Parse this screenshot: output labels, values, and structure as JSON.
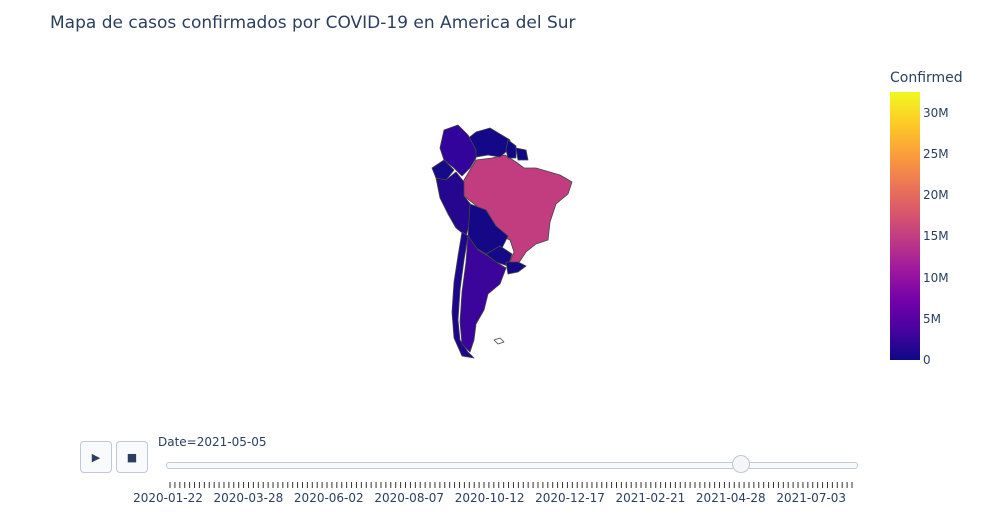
{
  "title": "Mapa de casos confirmados por COVID-19 en America del Sur",
  "chart_data": {
    "type": "choropleth",
    "title": "Mapa de casos confirmados por COVID-19 en America del Sur",
    "current_date": "2021-05-05",
    "colorscale": "plasma",
    "colorbar": {
      "title": "Confirmed",
      "range": [
        0,
        32500000
      ],
      "ticks": [
        "0",
        "5M",
        "10M",
        "15M",
        "20M",
        "25M",
        "30M"
      ]
    },
    "countries": [
      {
        "name": "Brazil",
        "color": "#c23d80"
      },
      {
        "name": "Argentina",
        "color": "#3b049a"
      },
      {
        "name": "Colombia",
        "color": "#32049b"
      },
      {
        "name": "Peru",
        "color": "#24068f"
      },
      {
        "name": "Chile",
        "color": "#1d068e"
      },
      {
        "name": "Ecuador",
        "color": "#170a89"
      },
      {
        "name": "Bolivia",
        "color": "#150887"
      },
      {
        "name": "Venezuela",
        "color": "#140888"
      },
      {
        "name": "Paraguay",
        "color": "#160887"
      },
      {
        "name": "Uruguay",
        "color": "#150887"
      },
      {
        "name": "Guyana",
        "color": "#0e0887"
      },
      {
        "name": "Suriname",
        "color": "#0e0887"
      }
    ]
  },
  "animation": {
    "play_icon": "▶",
    "stop_icon": "■",
    "slider_prefix": "Date=",
    "slider_value": "2021-05-05",
    "slider_position": 0.833,
    "tick_labels": [
      "2020-01-22",
      "2020-03-28",
      "2020-06-02",
      "2020-08-07",
      "2020-10-12",
      "2020-12-17",
      "2021-02-21",
      "2021-04-28",
      "2021-07-03"
    ]
  }
}
